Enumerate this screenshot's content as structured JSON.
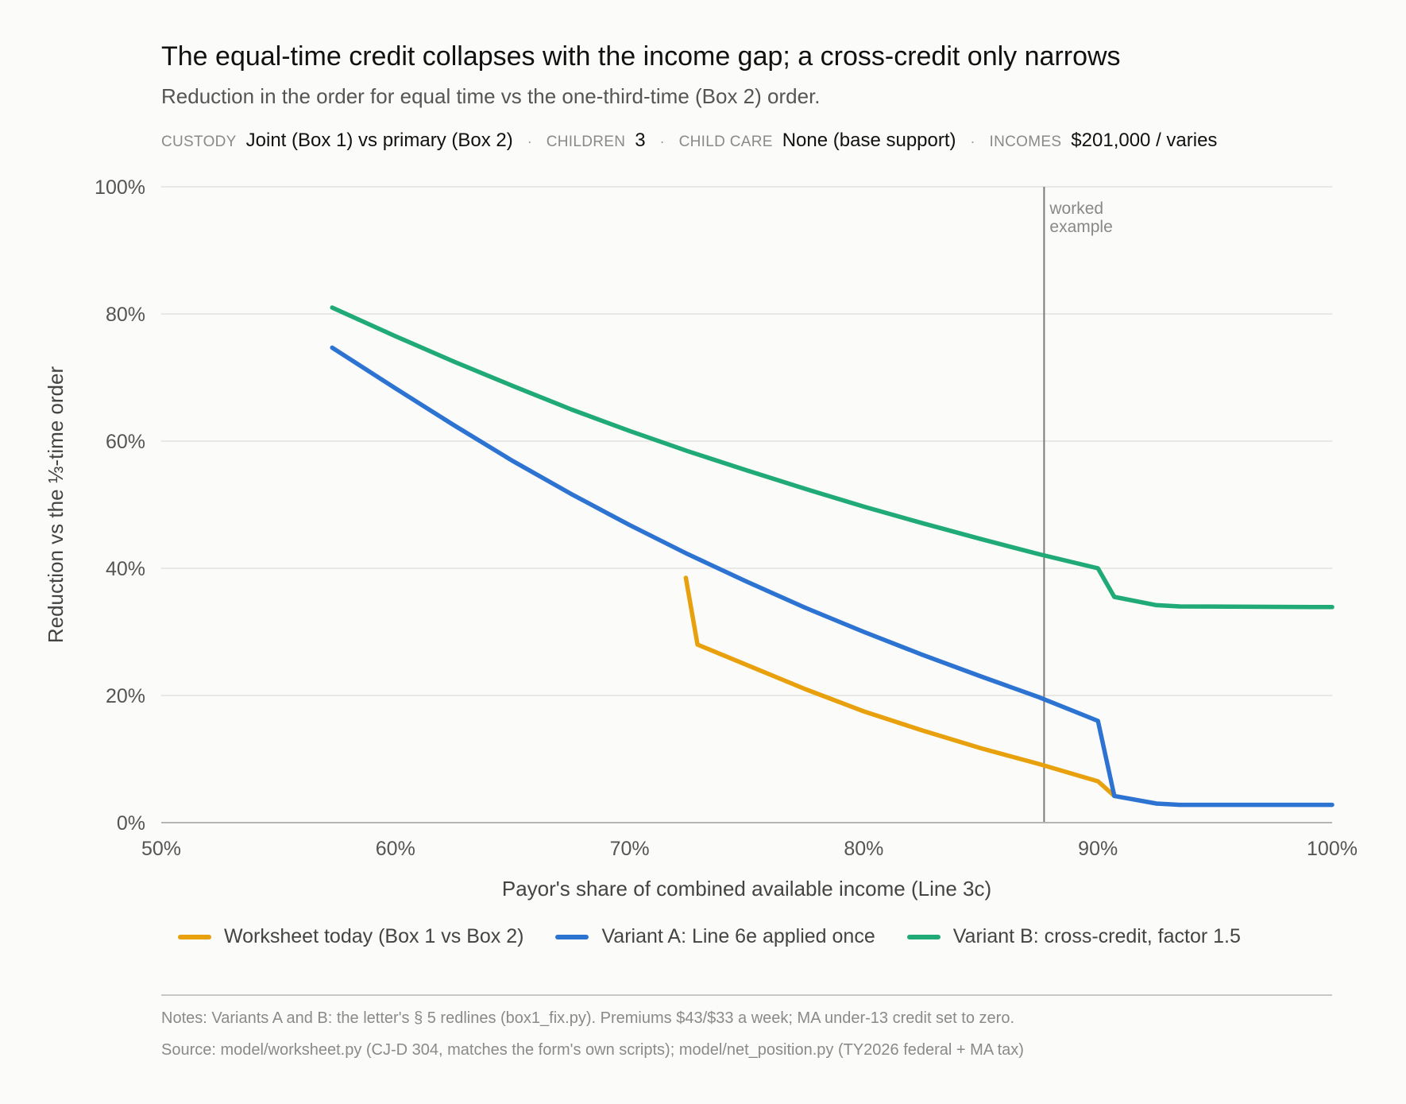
{
  "title": "The equal-time credit collapses with the income gap; a cross-credit only narrows",
  "subtitle": "Reduction in the order for equal time vs the one-third-time (Box 2) order.",
  "meta": [
    {
      "key": "CUSTODY",
      "value": "Joint (Box 1) vs primary (Box 2)"
    },
    {
      "key": "CHILDREN",
      "value": "3"
    },
    {
      "key": "CHILD CARE",
      "value": "None (base support)"
    },
    {
      "key": "INCOMES",
      "value": "$201,000 / varies"
    }
  ],
  "meta_separator": "·",
  "notes": "Notes: Variants A and B: the letter's § 5 redlines (box1_fix.py). Premiums $43/$33 a week; MA under-13 credit set to zero.",
  "source": "Source: model/worksheet.py (CJ-D 304, matches the form's own scripts); model/net_position.py (TY2026 federal + MA tax)",
  "chart_data": {
    "type": "line",
    "xlabel": "Payor's share of combined available income (Line 3c)",
    "ylabel": "Reduction vs the ⅓-time order",
    "xlim": [
      50,
      100
    ],
    "ylim": [
      0,
      100
    ],
    "x_ticks": [
      50,
      60,
      70,
      80,
      90,
      100
    ],
    "x_tick_labels": [
      "50%",
      "60%",
      "70%",
      "80%",
      "90%",
      "100%"
    ],
    "y_ticks": [
      0,
      20,
      40,
      60,
      80,
      100
    ],
    "y_tick_labels": [
      "0%",
      "20%",
      "40%",
      "60%",
      "80%",
      "100%"
    ],
    "grid": "horizontal",
    "legend_position": "bottom",
    "annotation": {
      "x": 87.7,
      "label_lines": [
        "worked",
        "example"
      ]
    },
    "series": [
      {
        "name": "Worksheet today (Box 1 vs Box 2)",
        "color": "#e8a10c",
        "points": [
          [
            72.4,
            38.5
          ],
          [
            72.9,
            28.0
          ],
          [
            75,
            24.8
          ],
          [
            77.5,
            21.0
          ],
          [
            80,
            17.5
          ],
          [
            82.5,
            14.5
          ],
          [
            85,
            11.7
          ],
          [
            87.5,
            9.2
          ],
          [
            90,
            6.5
          ],
          [
            90.7,
            4.2
          ]
        ]
      },
      {
        "name": "Variant A: Line 6e applied once",
        "color": "#2d73d2",
        "points": [
          [
            57.3,
            74.7
          ],
          [
            60,
            68.3
          ],
          [
            62.5,
            62.5
          ],
          [
            65,
            56.9
          ],
          [
            67.5,
            51.7
          ],
          [
            70,
            46.8
          ],
          [
            72.5,
            42.2
          ],
          [
            75,
            37.9
          ],
          [
            77.5,
            33.8
          ],
          [
            80,
            30.0
          ],
          [
            82.5,
            26.4
          ],
          [
            85,
            23.0
          ],
          [
            87.5,
            19.7
          ],
          [
            90,
            16.0
          ],
          [
            90.7,
            4.2
          ],
          [
            92.5,
            3.0
          ],
          [
            93.5,
            2.8
          ],
          [
            100,
            2.8
          ]
        ]
      },
      {
        "name": "Variant B: cross-credit, factor 1.5",
        "color": "#1faa78",
        "points": [
          [
            57.3,
            81.0
          ],
          [
            60,
            76.5
          ],
          [
            62.5,
            72.5
          ],
          [
            65,
            68.7
          ],
          [
            67.5,
            65.0
          ],
          [
            70,
            61.6
          ],
          [
            72.5,
            58.4
          ],
          [
            75,
            55.4
          ],
          [
            77.5,
            52.5
          ],
          [
            80,
            49.7
          ],
          [
            82.5,
            47.1
          ],
          [
            85,
            44.6
          ],
          [
            87.5,
            42.2
          ],
          [
            90,
            40.0
          ],
          [
            90.7,
            35.5
          ],
          [
            92.5,
            34.2
          ],
          [
            93.5,
            34.0
          ],
          [
            100,
            33.9
          ]
        ]
      }
    ]
  }
}
